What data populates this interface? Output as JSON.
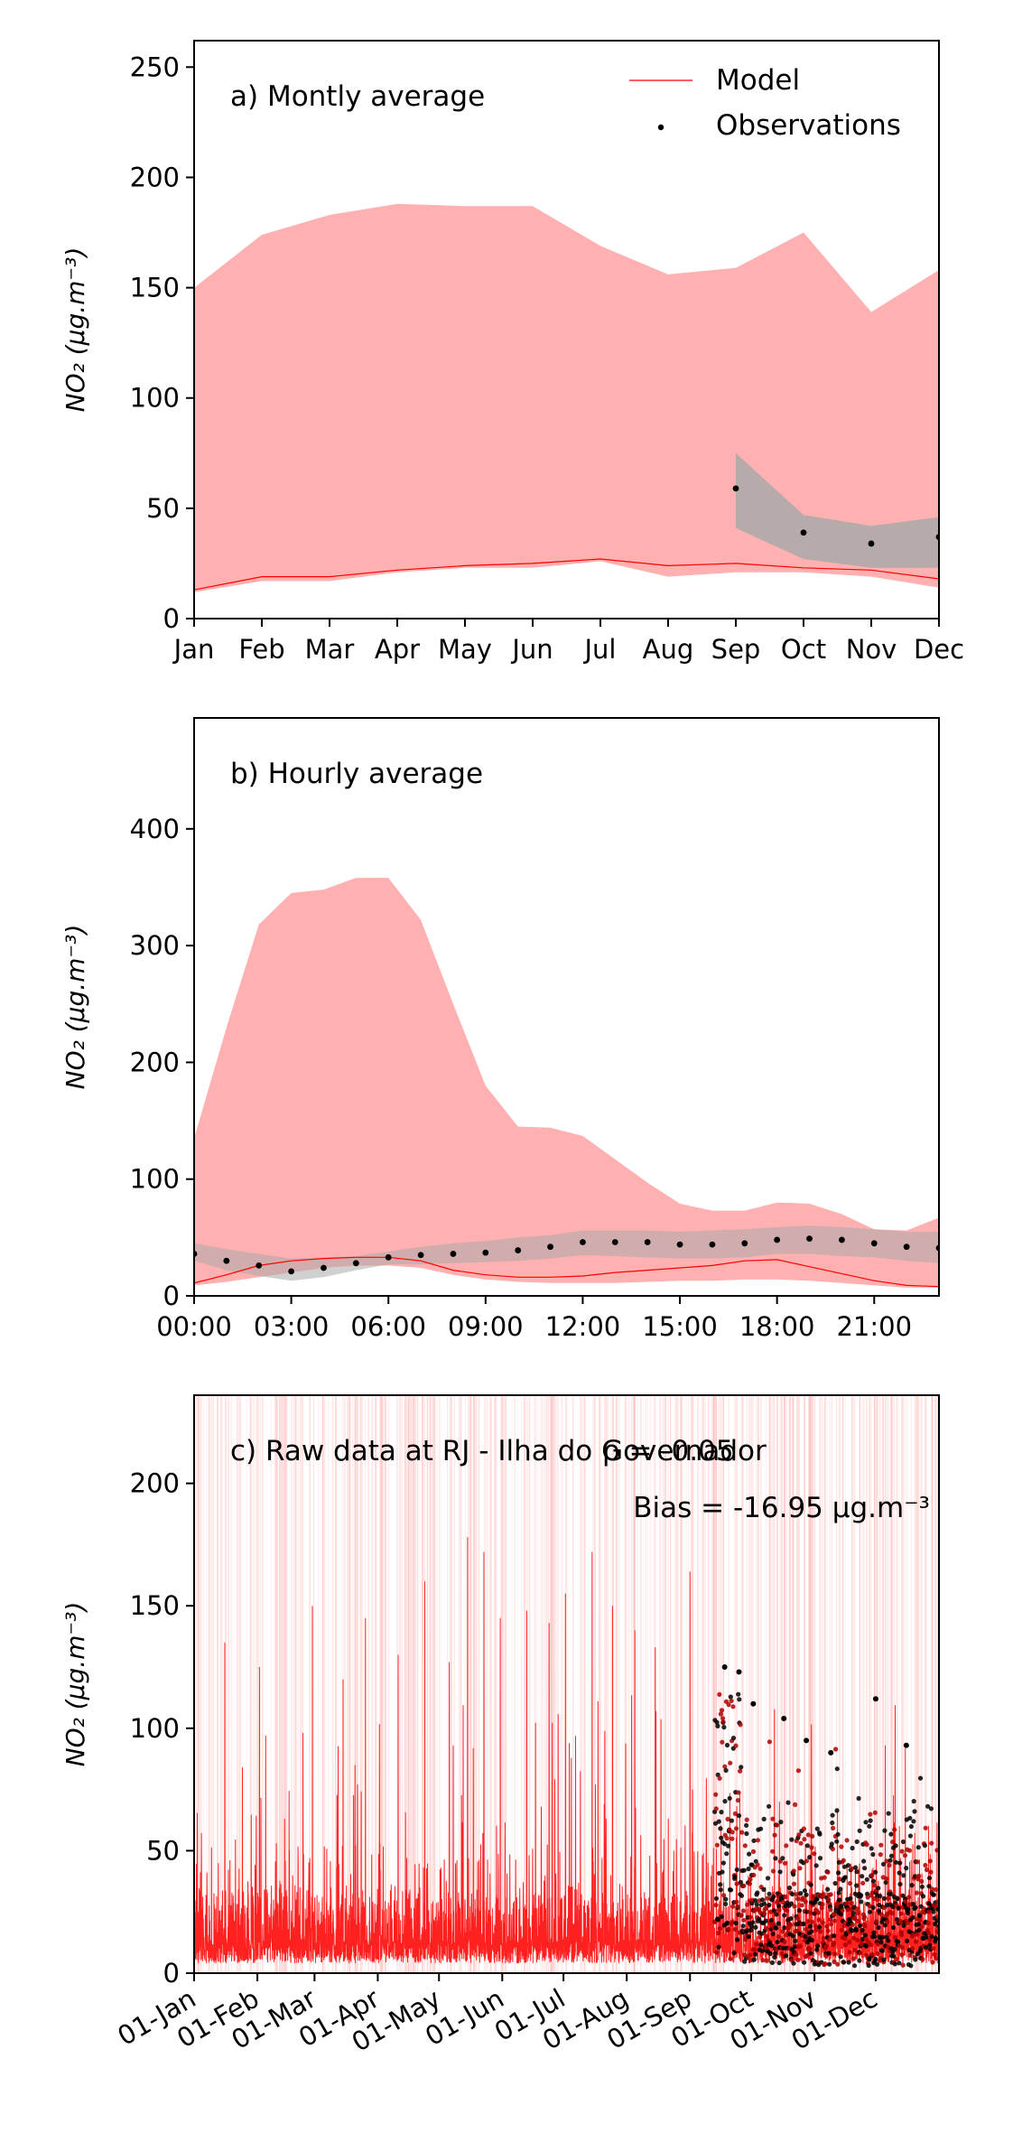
{
  "chart_data": [
    {
      "type": "line",
      "title": "a) Montly average",
      "ylabel": "NO₂ (μg.m⁻³)",
      "x_ticks": [
        "Jan",
        "Feb",
        "Mar",
        "Apr",
        "May",
        "Jun",
        "Jul",
        "Aug",
        "Sep",
        "Oct",
        "Nov",
        "Dec"
      ],
      "ylim": [
        0,
        262
      ],
      "y_ticks": [
        0,
        50,
        100,
        150,
        200,
        250
      ],
      "legend": {
        "placement": "top-right",
        "entries": [
          "Model",
          "Observations"
        ]
      },
      "series": [
        {
          "name": "Model",
          "color": "#ff0000",
          "values": [
            13,
            19,
            19,
            22,
            24,
            25,
            27,
            24,
            25,
            23,
            22,
            18
          ]
        },
        {
          "name": "Observations",
          "color": "#000000",
          "x_index": [
            8,
            9,
            10,
            11
          ],
          "values": [
            59,
            39,
            34,
            37
          ]
        }
      ],
      "model_band": {
        "color": "#ffb0b0",
        "upper": [
          150,
          174,
          183,
          188,
          187,
          187,
          169,
          156,
          159,
          175,
          139,
          158
        ],
        "lower": [
          12,
          17,
          17,
          21,
          23,
          23,
          26,
          19,
          21,
          21,
          19,
          14
        ]
      },
      "obs_band": {
        "color": "#a9a9a9",
        "x_index": [
          8,
          9,
          10,
          11
        ],
        "upper": [
          75,
          47,
          42,
          46
        ],
        "lower": [
          41,
          27,
          23,
          23
        ]
      }
    },
    {
      "type": "line",
      "title": "b) Hourly average",
      "ylabel": "NO₂ (μg.m⁻³)",
      "x_ticks": [
        "00:00",
        "03:00",
        "06:00",
        "09:00",
        "12:00",
        "15:00",
        "18:00",
        "21:00"
      ],
      "ylim": [
        0,
        495
      ],
      "y_ticks": [
        0,
        100,
        200,
        300,
        400
      ],
      "series": [
        {
          "name": "Model",
          "color": "#ff0000",
          "values": [
            11,
            18,
            26,
            30,
            32,
            33,
            33,
            30,
            22,
            18,
            16,
            16,
            17,
            20,
            22,
            24,
            26,
            30,
            31,
            25,
            19,
            13,
            9,
            8
          ]
        },
        {
          "name": "Observations",
          "color": "#000000",
          "values": [
            36,
            30,
            26,
            21,
            24,
            28,
            33,
            35,
            36,
            37,
            39,
            42,
            46,
            46,
            46,
            44,
            44,
            45,
            48,
            49,
            48,
            45,
            42,
            41
          ]
        }
      ],
      "model_band": {
        "color": "#ffb0b0",
        "upper": [
          135,
          230,
          318,
          345,
          348,
          358,
          358,
          322,
          250,
          180,
          145,
          144,
          137,
          117,
          97,
          79,
          73,
          73,
          80,
          79,
          70,
          57,
          56,
          67
        ],
        "lower": [
          9,
          12,
          16,
          20,
          24,
          26,
          26,
          24,
          18,
          14,
          12,
          11,
          11,
          11,
          12,
          13,
          13,
          14,
          14,
          13,
          11,
          9,
          7,
          7
        ]
      },
      "obs_band": {
        "color": "#a9a9a9",
        "upper": [
          45,
          40,
          36,
          32,
          33,
          34,
          38,
          42,
          45,
          47,
          50,
          52,
          56,
          56,
          56,
          55,
          56,
          57,
          59,
          60,
          59,
          57,
          55,
          55
        ],
        "lower": [
          30,
          22,
          17,
          13,
          16,
          22,
          27,
          27,
          28,
          29,
          30,
          32,
          35,
          34,
          33,
          32,
          32,
          33,
          36,
          36,
          34,
          33,
          30,
          28
        ]
      }
    },
    {
      "type": "line",
      "title": "c) Raw data at RJ - Ilha do Governador",
      "annotations": [
        "ρ = -0.05",
        "Bias = -16.95 μg.m⁻³"
      ],
      "ylabel": "NO₂ (μg.m⁻³)",
      "x_ticks": [
        "01-Jan",
        "01-Feb",
        "01-Mar",
        "01-Apr",
        "01-May",
        "01-Jun",
        "01-Jul",
        "01-Aug",
        "01-Sep",
        "01-Oct",
        "01-Nov",
        "01-Dec"
      ],
      "x_tick_days": [
        0,
        31,
        59,
        90,
        120,
        151,
        181,
        212,
        243,
        273,
        304,
        334
      ],
      "xlim_days": [
        0,
        365
      ],
      "ylim": [
        0,
        236
      ],
      "y_ticks": [
        0,
        50,
        100,
        150,
        200
      ],
      "model_trace": {
        "color": "#ff0000",
        "peaks": [
          {
            "day": 15,
            "value": 135
          },
          {
            "day": 32,
            "value": 125
          },
          {
            "day": 58,
            "value": 150
          },
          {
            "day": 73,
            "value": 120
          },
          {
            "day": 84,
            "value": 145
          },
          {
            "day": 100,
            "value": 130
          },
          {
            "day": 113,
            "value": 160
          },
          {
            "day": 125,
            "value": 127
          },
          {
            "day": 134,
            "value": 178
          },
          {
            "day": 142,
            "value": 172
          },
          {
            "day": 150,
            "value": 145
          },
          {
            "day": 163,
            "value": 148
          },
          {
            "day": 174,
            "value": 143
          },
          {
            "day": 182,
            "value": 155
          },
          {
            "day": 195,
            "value": 172
          },
          {
            "day": 205,
            "value": 150
          },
          {
            "day": 216,
            "value": 140
          },
          {
            "day": 226,
            "value": 133
          },
          {
            "day": 243,
            "value": 164
          }
        ]
      },
      "observation_scatter": {
        "color": "#000000",
        "start_day": 255,
        "peaks": [
          {
            "day": 260,
            "value": 125
          },
          {
            "day": 267,
            "value": 123
          },
          {
            "day": 274,
            "value": 110
          },
          {
            "day": 289,
            "value": 104
          },
          {
            "day": 300,
            "value": 95
          },
          {
            "day": 312,
            "value": 90
          },
          {
            "day": 334,
            "value": 112
          },
          {
            "day": 349,
            "value": 93
          }
        ]
      }
    }
  ]
}
